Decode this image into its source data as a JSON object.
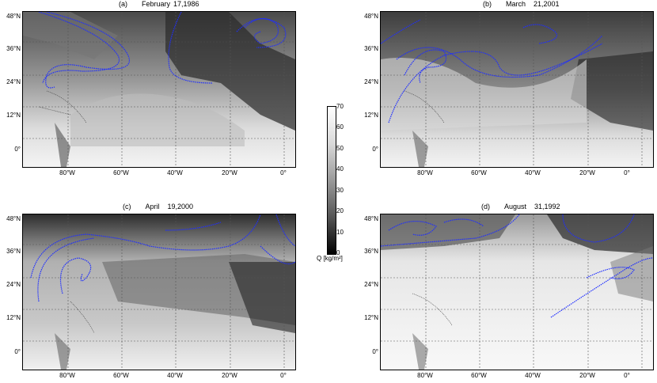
{
  "panels": [
    {
      "tag": "(a)",
      "month": "February",
      "date": "17,1986"
    },
    {
      "tag": "(b)",
      "month": "March",
      "date": "21,2001"
    },
    {
      "tag": "(c)",
      "month": "April",
      "date": "19,2000"
    },
    {
      "tag": "(d)",
      "month": "August",
      "date": "31,1992"
    }
  ],
  "lat_labels": [
    "48°N",
    "36°N",
    "24°N",
    "12°N",
    "0°"
  ],
  "lon_labels": [
    "80°W",
    "60°W",
    "40°W",
    "20°W",
    "0°"
  ],
  "colorbar": {
    "ticks": [
      "70",
      "60",
      "50",
      "40",
      "30",
      "20",
      "10",
      "0"
    ],
    "label": "Q [kg/m²]",
    "range": [
      0,
      70
    ],
    "colors": {
      "max": "#ffffff",
      "min": "#000000"
    }
  },
  "streamline_color": "#1f2eff"
}
